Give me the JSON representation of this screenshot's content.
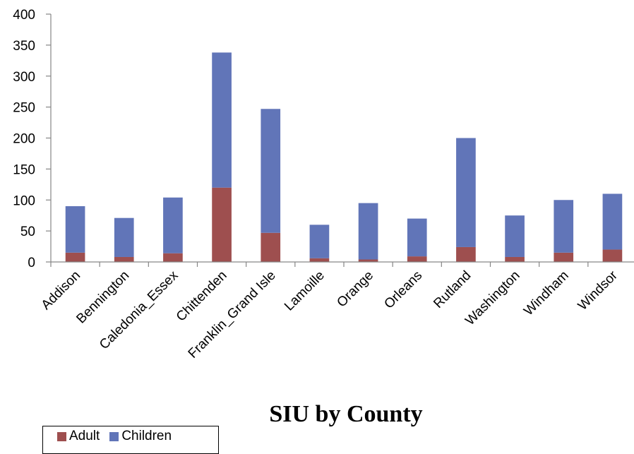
{
  "chart_data": {
    "type": "bar",
    "stacked": true,
    "title": "SIU by County",
    "xlabel": "",
    "ylabel": "",
    "ylim": [
      0,
      400
    ],
    "yticks": [
      0,
      50,
      100,
      150,
      200,
      250,
      300,
      350,
      400
    ],
    "grid": false,
    "legend_position": "bottom-left",
    "categories": [
      "Addison",
      "Bennington",
      "Caledonia_Essex",
      "Chittenden",
      "Franklin_Grand Isle",
      "Lamoille",
      "Orange",
      "Orleans",
      "Rutland",
      "Washington",
      "Windham",
      "Windsor"
    ],
    "series": [
      {
        "name": "Adult",
        "color": "#9e4f4f",
        "values": [
          15,
          8,
          14,
          120,
          47,
          6,
          4,
          9,
          24,
          8,
          15,
          20
        ]
      },
      {
        "name": "Children",
        "color": "#6175b8",
        "values": [
          75,
          63,
          90,
          218,
          200,
          54,
          91,
          61,
          176,
          67,
          85,
          90
        ]
      }
    ]
  }
}
